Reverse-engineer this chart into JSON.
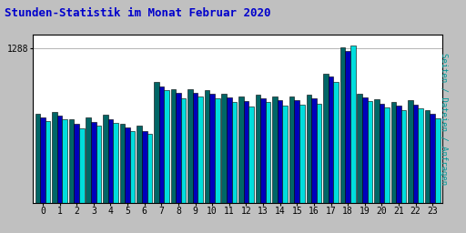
{
  "title": "Stunden-Statistik im Monat Februar 2020",
  "ylabel": "Seiten / Dateien / Anfragen",
  "hours": [
    0,
    1,
    2,
    3,
    4,
    5,
    6,
    7,
    8,
    9,
    10,
    11,
    12,
    13,
    14,
    15,
    16,
    17,
    18,
    19,
    20,
    21,
    22,
    23
  ],
  "series1": [
    740,
    760,
    695,
    715,
    735,
    655,
    645,
    1005,
    950,
    950,
    940,
    910,
    885,
    902,
    890,
    886,
    902,
    1080,
    1295,
    912,
    862,
    840,
    854,
    772
  ],
  "series2": [
    710,
    730,
    655,
    675,
    700,
    625,
    600,
    970,
    920,
    918,
    908,
    878,
    848,
    870,
    858,
    855,
    868,
    1050,
    1265,
    878,
    828,
    810,
    820,
    742
  ],
  "series3": [
    680,
    695,
    620,
    645,
    670,
    600,
    575,
    940,
    875,
    885,
    870,
    840,
    800,
    840,
    810,
    815,
    825,
    1010,
    1310,
    845,
    795,
    775,
    785,
    705
  ],
  "color1": "#006666",
  "color2": "#0000bb",
  "color3": "#00dddd",
  "bg_color": "#c0c0c0",
  "plot_bg": "#ffffff",
  "title_color": "#0000cc",
  "ylabel_color": "#009999",
  "bar_width": 0.3,
  "ylim_max": 1400,
  "ytick": 1288
}
